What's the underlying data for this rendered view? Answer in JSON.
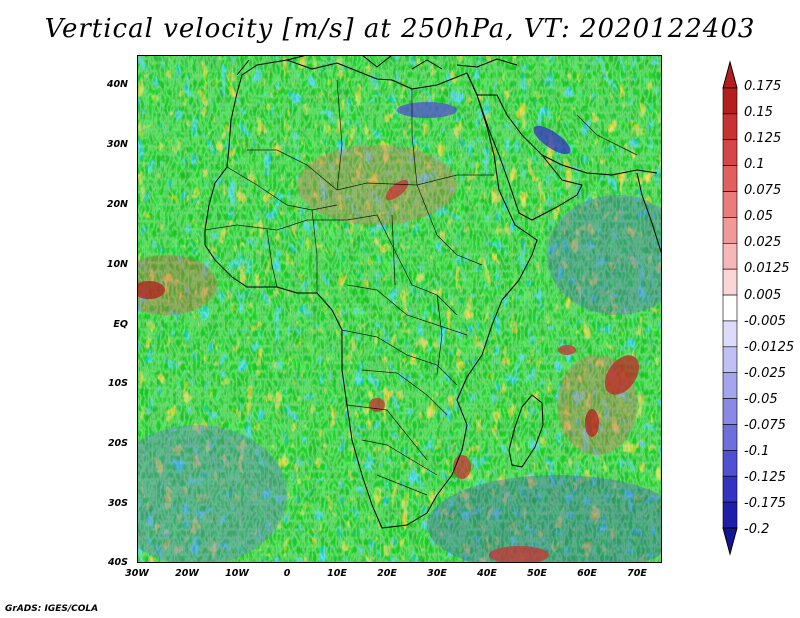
{
  "title": "Vertical velocity [m/s] at 250hPa, VT: 2020122403",
  "credit": "GrADS: IGES/COLA",
  "map": {
    "region": "Africa",
    "lon_range": [
      -30,
      75
    ],
    "lat_range": [
      -40,
      45
    ],
    "lat_labels": [
      "40N",
      "30N",
      "20N",
      "10N",
      "EQ",
      "10S",
      "20S",
      "30S",
      "40S"
    ],
    "lon_labels": [
      "30W",
      "20W",
      "10W",
      "0",
      "10E",
      "20E",
      "30E",
      "40E",
      "50E",
      "60E",
      "70E"
    ]
  },
  "colorbar": {
    "levels": [
      "0.175",
      "0.15",
      "0.125",
      "0.1",
      "0.075",
      "0.05",
      "0.025",
      "0.0125",
      "0.005",
      "-0.005",
      "-0.0125",
      "-0.025",
      "-0.05",
      "-0.075",
      "-0.1",
      "-0.125",
      "-0.175",
      "-0.2"
    ],
    "colors": [
      "#b41e1e",
      "#c83232",
      "#d74646",
      "#e15f5f",
      "#ea7c7c",
      "#f09999",
      "#f5b7b7",
      "#fad6d6",
      "#ffffff",
      "#dcdcfa",
      "#c0c0f5",
      "#a5a5ee",
      "#8a8ae6",
      "#6e6edc",
      "#5050d2",
      "#3232c3",
      "#1e1eaa"
    ]
  }
}
